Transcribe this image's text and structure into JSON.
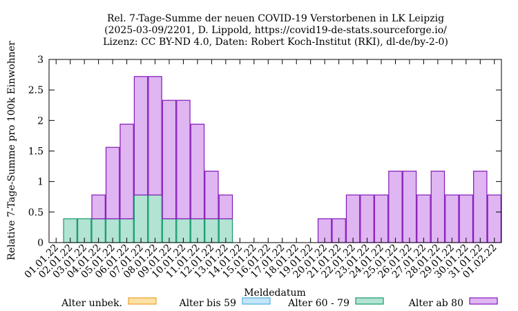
{
  "chart_data": {
    "type": "bar",
    "stacked": true,
    "title": [
      "Rel. 7-Tage-Summe der neuen COVID-19 Verstorbenen in LK Leipzig",
      "(2025-03-09/2201, D. Lippold, https://covid19-de-stats.sourceforge.io/",
      "Lizenz: CC BY-ND 4.0, Daten: Robert Koch-Institut (RKI), dl-de/by-2-0)"
    ],
    "xlabel": "Meldedatum",
    "ylabel": "Relative 7-Tage-Summe pro 100k Einwohner",
    "ylim": [
      0,
      3
    ],
    "yticks": [
      "0",
      "0.5",
      "1",
      "1.5",
      "2",
      "2.5",
      "3"
    ],
    "categories": [
      "01.01.22",
      "02.01.22",
      "03.01.22",
      "04.01.22",
      "05.01.22",
      "06.01.22",
      "07.01.22",
      "08.01.22",
      "09.01.22",
      "10.01.22",
      "11.01.22",
      "12.01.22",
      "13.01.22",
      "14.01.22",
      "15.01.22",
      "16.01.22",
      "17.01.22",
      "18.01.22",
      "19.01.22",
      "20.01.22",
      "21.01.22",
      "22.01.22",
      "23.01.22",
      "24.01.22",
      "25.01.22",
      "26.01.22",
      "27.01.22",
      "28.01.22",
      "29.01.22",
      "30.01.22",
      "31.01.22",
      "01.02.22"
    ],
    "series": [
      {
        "name": "Alter unbek.",
        "color": "#fbe1a4",
        "stroke": "#e8a030",
        "values": [
          0,
          0,
          0,
          0,
          0,
          0,
          0,
          0,
          0,
          0,
          0,
          0,
          0,
          0,
          0,
          0,
          0,
          0,
          0,
          0,
          0,
          0,
          0,
          0,
          0,
          0,
          0,
          0,
          0,
          0,
          0,
          0
        ]
      },
      {
        "name": "Alter bis 59",
        "color": "#c4e4f8",
        "stroke": "#50aee0",
        "values": [
          0,
          0,
          0,
          0,
          0,
          0,
          0,
          0,
          0,
          0,
          0,
          0,
          0,
          0,
          0,
          0,
          0,
          0,
          0,
          0,
          0,
          0,
          0,
          0,
          0,
          0,
          0,
          0,
          0,
          0,
          0,
          0
        ]
      },
      {
        "name": "Alter 60 - 79",
        "color": "#b3e3d2",
        "stroke": "#149a6c",
        "values": [
          0,
          0.39,
          0.39,
          0.39,
          0.39,
          0.39,
          0.78,
          0.78,
          0.39,
          0.39,
          0.39,
          0.39,
          0.39,
          0,
          0,
          0,
          0,
          0,
          0,
          0,
          0,
          0,
          0,
          0,
          0,
          0,
          0,
          0,
          0,
          0,
          0,
          0
        ]
      },
      {
        "name": "Alter ab 80",
        "color": "#dfb5f2",
        "stroke": "#8418b8",
        "values": [
          0,
          0,
          0,
          0.39,
          1.17,
          1.55,
          1.94,
          1.94,
          1.94,
          1.94,
          1.55,
          0.78,
          0.39,
          0,
          0,
          0,
          0,
          0,
          0,
          0.39,
          0.39,
          0.78,
          0.78,
          0.78,
          1.17,
          1.17,
          0.78,
          1.17,
          0.78,
          0.78,
          1.17,
          0.78
        ]
      }
    ],
    "legend_position": "bottom",
    "grid": false
  }
}
